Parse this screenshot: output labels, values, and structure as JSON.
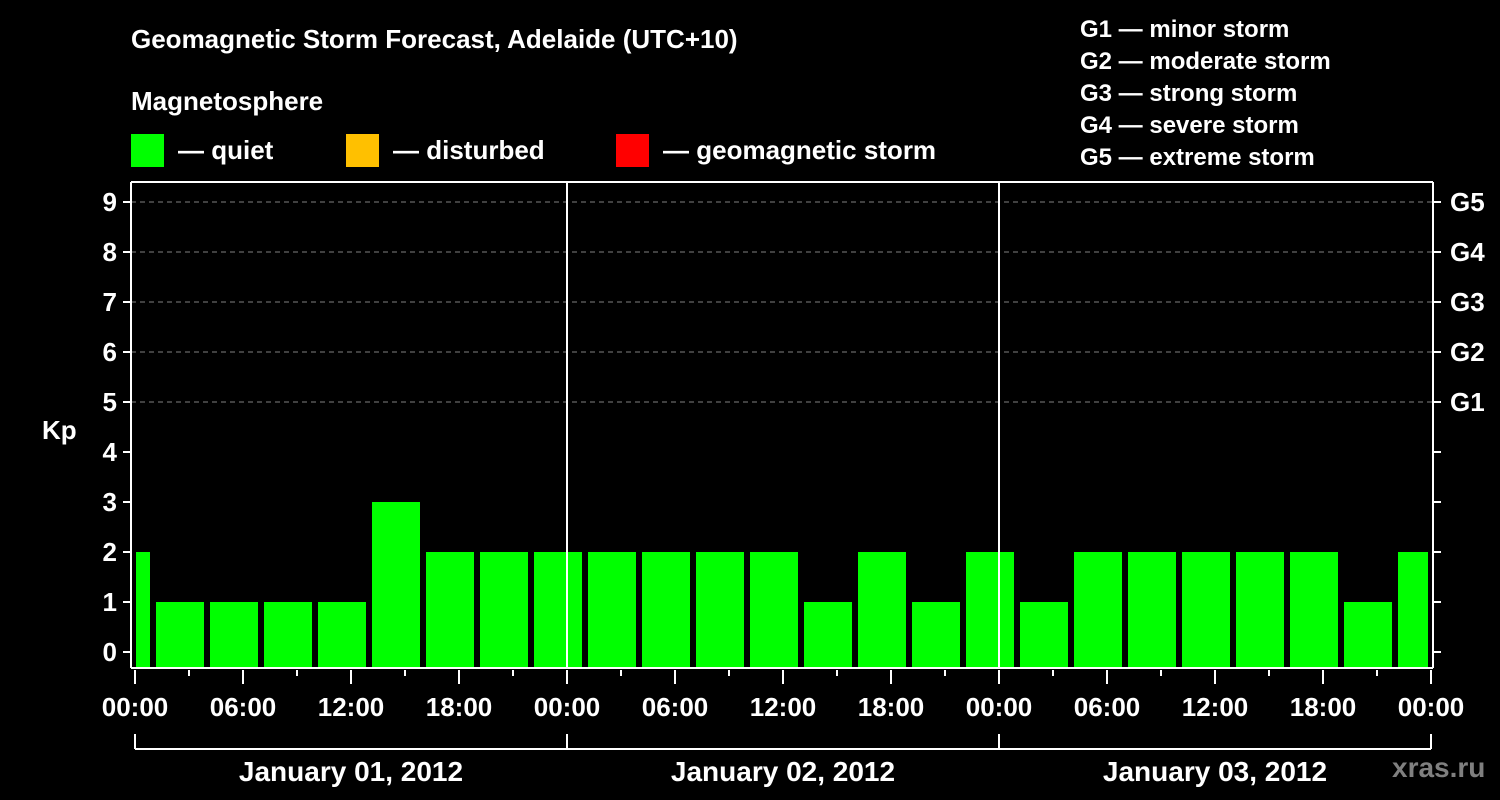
{
  "header": {
    "title": "Geomagnetic Storm Forecast, Adelaide (UTC+10)",
    "subtitle": "Magnetosphere"
  },
  "legend": [
    {
      "label": "— quiet",
      "color": "#00ff00"
    },
    {
      "label": "— disturbed",
      "color": "#ffc000"
    },
    {
      "label": "— geomagnetic storm",
      "color": "#ff0000"
    }
  ],
  "g_legend": [
    "G1 — minor storm",
    "G2 — moderate storm",
    "G3 — strong storm",
    "G4 — severe storm",
    "G5 — extreme storm"
  ],
  "watermark": "xras.ru",
  "chart_data": {
    "type": "bar",
    "title": "Geomagnetic Storm Forecast, Adelaide (UTC+10)",
    "xlabel": "",
    "ylabel": "Kp",
    "ylim": [
      0,
      9
    ],
    "y_ticks": [
      0,
      1,
      2,
      3,
      4,
      5,
      6,
      7,
      8,
      9
    ],
    "right_axis_labels": [
      {
        "kp": 5,
        "label": "G1"
      },
      {
        "kp": 6,
        "label": "G2"
      },
      {
        "kp": 7,
        "label": "G3"
      },
      {
        "kp": 8,
        "label": "G4"
      },
      {
        "kp": 9,
        "label": "G5"
      }
    ],
    "x_tick_labels": [
      "00:00",
      "06:00",
      "12:00",
      "18:00",
      "00:00",
      "06:00",
      "12:00",
      "18:00",
      "00:00",
      "06:00",
      "12:00",
      "18:00",
      "00:00"
    ],
    "date_labels": [
      "January 01, 2012",
      "January 02, 2012",
      "January 03, 2012"
    ],
    "grid": "dashed horizontal at Kp 5-9",
    "categories": [
      "Jan01 00:00 (partial)",
      "Jan01 01:30",
      "Jan01 04:30",
      "Jan01 07:30",
      "Jan01 10:30",
      "Jan01 13:30",
      "Jan01 16:30",
      "Jan01 19:30",
      "Jan01 22:30",
      "Jan02 01:30",
      "Jan02 04:30",
      "Jan02 07:30",
      "Jan02 10:30",
      "Jan02 13:30",
      "Jan02 16:30",
      "Jan02 19:30",
      "Jan02 22:30",
      "Jan03 01:30",
      "Jan03 04:30",
      "Jan03 07:30",
      "Jan03 10:30",
      "Jan03 13:30",
      "Jan03 16:30",
      "Jan03 19:30",
      "Jan03 22:30 (partial)"
    ],
    "values": [
      2,
      1,
      1,
      1,
      1,
      3,
      2,
      2,
      2,
      2,
      2,
      2,
      2,
      1,
      2,
      1,
      2,
      1,
      2,
      2,
      2,
      2,
      2,
      1,
      2
    ],
    "bar_colors": {
      "quiet": "#00ff00",
      "disturbed": "#ffc000",
      "storm": "#ff0000"
    }
  }
}
